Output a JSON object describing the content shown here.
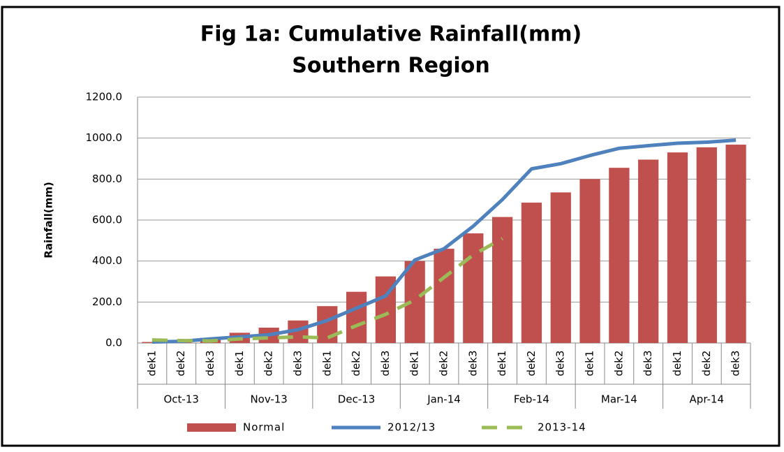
{
  "chart_data": {
    "type": "bar-line",
    "title": "Fig 1a: Cumulative Rainfall(mm)",
    "subtitle": "Southern Region",
    "y_label": "Rainfall(mm)",
    "categories": [
      "dek1",
      "dek2",
      "dek3",
      "dek1",
      "dek2",
      "dek3",
      "dek1",
      "dek2",
      "dek3",
      "dek1",
      "dek2",
      "dek3",
      "dek1",
      "dek2",
      "dek3",
      "dek1",
      "dek2",
      "dek3",
      "dek1",
      "dek2",
      "dek3"
    ],
    "category_groups": [
      "Oct-13",
      "Nov-13",
      "Dec-13",
      "Jan-14",
      "Feb-14",
      "Mar-14",
      "Apr-14"
    ],
    "series": [
      {
        "name": "Normal",
        "kind": "bar",
        "color": "#c0504d",
        "values": [
          5,
          12,
          25,
          50,
          75,
          110,
          180,
          250,
          325,
          400,
          460,
          535,
          615,
          685,
          735,
          800,
          855,
          895,
          930,
          955,
          968
        ]
      },
      {
        "name": "2012/13",
        "kind": "line",
        "color": "#4f81bd",
        "values": [
          5,
          8,
          20,
          30,
          40,
          65,
          110,
          170,
          230,
          405,
          460,
          570,
          700,
          850,
          875,
          915,
          950,
          963,
          975,
          980,
          990
        ]
      },
      {
        "name": "2013-14",
        "kind": "dashed",
        "color": "#9bbb59",
        "values": [
          15,
          12,
          10,
          20,
          25,
          30,
          25,
          85,
          140,
          210,
          320,
          430,
          510,
          null,
          null,
          null,
          null,
          null,
          null,
          null,
          null
        ]
      }
    ],
    "ylim": [
      0,
      1200
    ],
    "yticks": [
      {
        "value": 0,
        "label": "0.0"
      },
      {
        "value": 200,
        "label": "200.0"
      },
      {
        "value": 400,
        "label": "400.0"
      },
      {
        "value": 600,
        "label": "600.0"
      },
      {
        "value": 800,
        "label": "800.0"
      },
      {
        "value": 1000,
        "label": "1000.0"
      },
      {
        "value": 1200,
        "label": "1200.0"
      }
    ],
    "grid": true,
    "legend": "bottom"
  }
}
